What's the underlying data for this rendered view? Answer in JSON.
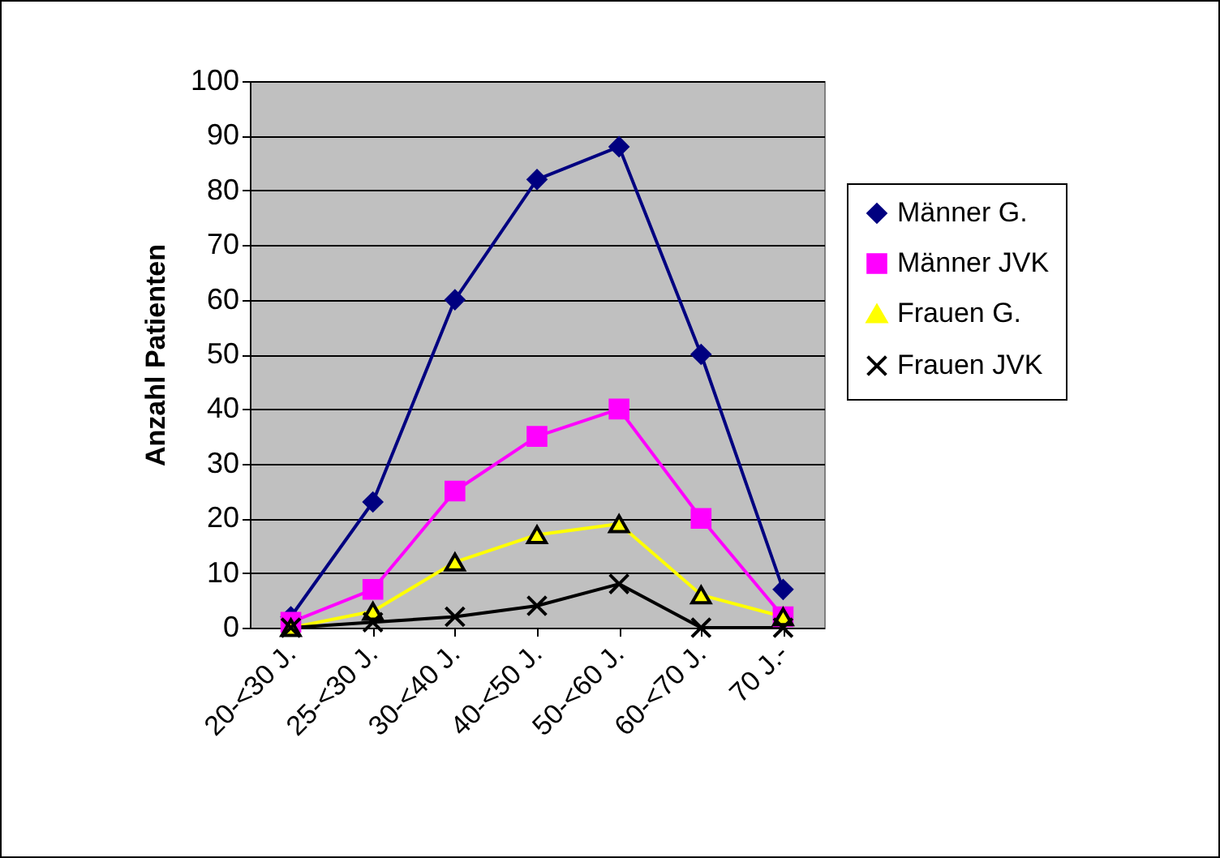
{
  "chart_data": {
    "type": "line",
    "ylabel": "Anzahl Patienten",
    "categories": [
      "20-<30 J.",
      "25-<30 J.",
      "30-<40 J.",
      "40-<50 J.",
      "50-<60 J.",
      "60-<70 J.",
      "70 J.-"
    ],
    "series": [
      {
        "name": "Männer G.",
        "color": "#000080",
        "marker": "diamond",
        "values": [
          2,
          23,
          60,
          82,
          88,
          50,
          7
        ]
      },
      {
        "name": "Männer JVK",
        "color": "#ff00ff",
        "marker": "square",
        "values": [
          1,
          7,
          25,
          35,
          40,
          20,
          2
        ]
      },
      {
        "name": "Frauen G.",
        "color": "#ffff00",
        "marker": "triangle",
        "values": [
          0,
          3,
          12,
          17,
          19,
          6,
          2
        ]
      },
      {
        "name": "Frauen JVK",
        "color": "#000000",
        "marker": "cross",
        "values": [
          0,
          1,
          2,
          4,
          8,
          0,
          0
        ]
      }
    ],
    "ylim": [
      0,
      100
    ],
    "yticks": [
      0,
      10,
      20,
      30,
      40,
      50,
      60,
      70,
      80,
      90,
      100
    ],
    "grid": "y",
    "legend": "right"
  }
}
